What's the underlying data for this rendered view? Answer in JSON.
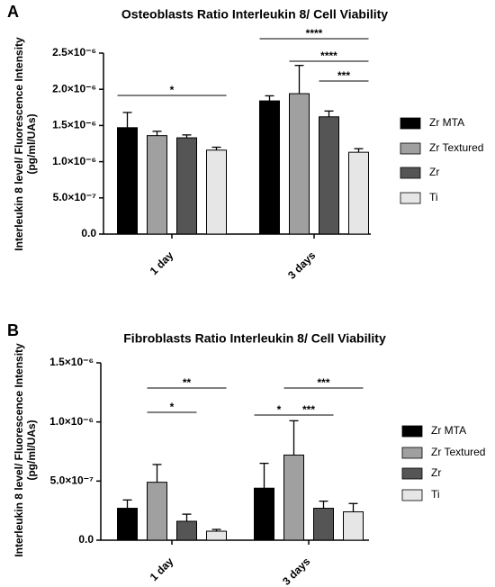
{
  "chart_data": [
    {
      "type": "bar",
      "panel": "A",
      "title": "Osteoblasts Ratio Interleukin 8/ Cell Viability",
      "y_label": [
        "Interleukin 8 level/ Fluorescence Intensity",
        "(pg/ml/UAs)"
      ],
      "categories": [
        "1 day",
        "3 days"
      ],
      "series": [
        {
          "name": "Zr MTA",
          "color": "#000000",
          "values": [
            1.47e-06,
            1.84e-06
          ],
          "errors": [
            2.1e-07,
            7e-08
          ]
        },
        {
          "name": "Zr Textured",
          "color": "#a0a0a0",
          "values": [
            1.36e-06,
            1.94e-06
          ],
          "errors": [
            6e-08,
            3.9e-07
          ]
        },
        {
          "name": "Zr",
          "color": "#555555",
          "values": [
            1.33e-06,
            1.62e-06
          ],
          "errors": [
            4e-08,
            8e-08
          ]
        },
        {
          "name": "Ti",
          "color": "#e6e6e6",
          "values": [
            1.16e-06,
            1.13e-06
          ],
          "errors": [
            4e-08,
            5e-08
          ]
        }
      ],
      "ylim": [
        0,
        2.5e-06
      ],
      "yticks": [
        {
          "value": 0,
          "label": "0.0"
        },
        {
          "value": 5e-07,
          "label": "5.0×10⁻⁷"
        },
        {
          "value": 1e-06,
          "label": "1.0×10⁻⁶"
        },
        {
          "value": 1.5e-06,
          "label": "1.5×10⁻⁶"
        },
        {
          "value": 2e-06,
          "label": "2.0×10⁻⁶"
        },
        {
          "value": 2.5e-06,
          "label": "2.5×10⁻⁶"
        }
      ],
      "annotations": [
        "*",
        "****",
        "****",
        "***"
      ]
    },
    {
      "type": "bar",
      "panel": "B",
      "title": "Fibroblasts Ratio Interleukin 8/ Cell Viability",
      "y_label": [
        "Interleukin 8 level/ Fluorescence Intensity",
        "(pg/ml/UAs)"
      ],
      "categories": [
        "1 day",
        "3 days"
      ],
      "series": [
        {
          "name": "Zr MTA",
          "color": "#000000",
          "values": [
            2.7e-07,
            4.4e-07
          ],
          "errors": [
            7e-08,
            2.1e-07
          ]
        },
        {
          "name": "Zr Textured",
          "color": "#a0a0a0",
          "values": [
            4.9e-07,
            7.2e-07
          ],
          "errors": [
            1.5e-07,
            2.9e-07
          ]
        },
        {
          "name": "Zr",
          "color": "#555555",
          "values": [
            1.6e-07,
            2.7e-07
          ],
          "errors": [
            6e-08,
            6e-08
          ]
        },
        {
          "name": "Ti",
          "color": "#e6e6e6",
          "values": [
            7.6e-08,
            2.4e-07
          ],
          "errors": [
            1.5e-08,
            7e-08
          ]
        }
      ],
      "ylim": [
        0,
        1.5e-06
      ],
      "yticks": [
        {
          "value": 0,
          "label": "0.0"
        },
        {
          "value": 5e-07,
          "label": "5.0×10⁻⁷"
        },
        {
          "value": 1e-06,
          "label": "1.0×10⁻⁶"
        },
        {
          "value": 1.5e-06,
          "label": "1.5×10⁻⁶"
        }
      ],
      "annotations": [
        "**",
        "*",
        "*",
        "***",
        "***"
      ]
    }
  ]
}
